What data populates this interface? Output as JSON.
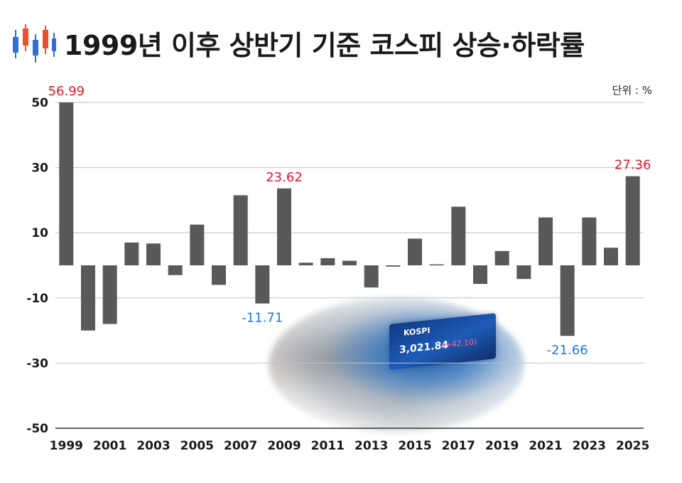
{
  "header": {
    "title": "1999년 이후 상반기 기준 코스피 상승·하락률",
    "unit_label": "단위 : %"
  },
  "photo": {
    "screen_label": "KOSPI",
    "screen_value": "3,021.84",
    "screen_change": "(+42.10)"
  },
  "colors": {
    "bar": "#595959",
    "label_up": "#e0182d",
    "label_down": "#1a7bd6",
    "grid": "#bfbfbf",
    "axis_text": "#1a1a1a"
  },
  "chart_data": {
    "type": "bar",
    "x": [
      1999,
      2000,
      2001,
      2002,
      2003,
      2004,
      2005,
      2006,
      2007,
      2008,
      2009,
      2010,
      2011,
      2012,
      2013,
      2014,
      2015,
      2016,
      2017,
      2018,
      2019,
      2020,
      2021,
      2022,
      2023,
      2024,
      2025
    ],
    "values": [
      56.99,
      -20,
      -18,
      7,
      6.7,
      -3,
      12.5,
      -6,
      21.5,
      -11.71,
      23.62,
      0.8,
      2.2,
      1.4,
      -6.8,
      -0.4,
      8.2,
      0.3,
      18,
      -5.7,
      4.4,
      -4.2,
      14.7,
      -21.66,
      14.7,
      5.4,
      27.36
    ],
    "x_tick_labels": [
      "1999",
      "2001",
      "2003",
      "2005",
      "2007",
      "2009",
      "2011",
      "2013",
      "2015",
      "2017",
      "2019",
      "2021",
      "2023",
      "2025"
    ],
    "y_tick_labels": [
      "50",
      "30",
      "10",
      "-10",
      "-30",
      "-50"
    ],
    "ylim": [
      -50,
      50
    ],
    "grid": true,
    "data_labels": [
      {
        "year": 1999,
        "text": "56.99",
        "kind": "up"
      },
      {
        "year": 2008,
        "text": "-11.71",
        "kind": "down"
      },
      {
        "year": 2009,
        "text": "23.62",
        "kind": "up"
      },
      {
        "year": 2022,
        "text": "-21.66",
        "kind": "down"
      },
      {
        "year": 2025,
        "text": "27.36",
        "kind": "up"
      }
    ]
  }
}
